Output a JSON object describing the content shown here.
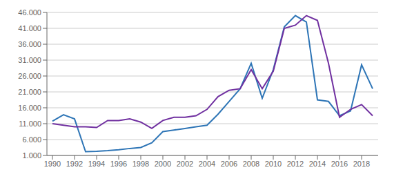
{
  "chart_data": {
    "type": "line",
    "x": [
      1990,
      1991,
      1992,
      1993,
      1994,
      1995,
      1996,
      1997,
      1998,
      1999,
      2000,
      2001,
      2002,
      2003,
      2004,
      2005,
      2006,
      2007,
      2008,
      2009,
      2010,
      2011,
      2012,
      2013,
      2014,
      2015,
      2016,
      2017,
      2018,
      2019
    ],
    "series": [
      {
        "color": "#2e75b6",
        "values": [
          11800,
          13800,
          12500,
          2200,
          2300,
          2500,
          2800,
          3200,
          3500,
          5000,
          8500,
          9000,
          9500,
          10000,
          10500,
          14000,
          18000,
          22000,
          30000,
          19000,
          28000,
          41500,
          45000,
          43000,
          18500,
          18000,
          13500,
          15000,
          29500,
          22000
        ]
      },
      {
        "color": "#7030a0",
        "values": [
          11000,
          10500,
          10000,
          10000,
          9800,
          12000,
          12000,
          12500,
          11500,
          9500,
          12000,
          13000,
          13000,
          13500,
          15500,
          19500,
          21500,
          22000,
          28000,
          22000,
          27500,
          41000,
          42000,
          45000,
          43500,
          30000,
          13000,
          15500,
          17000,
          13500
        ]
      }
    ],
    "xlim": [
      1989.5,
      2019.5
    ],
    "xticks": [
      1990,
      1992,
      1994,
      1996,
      1998,
      2000,
      2002,
      2004,
      2006,
      2008,
      2010,
      2012,
      2014,
      2016,
      2018
    ],
    "ylim": [
      1000,
      46000
    ],
    "yticks": [
      {
        "value": 1000,
        "label": "1.000"
      },
      {
        "value": 6000,
        "label": "6.000"
      },
      {
        "value": 11000,
        "label": "11.000"
      },
      {
        "value": 16000,
        "label": "16.000"
      },
      {
        "value": 21000,
        "label": "21.000"
      },
      {
        "value": 26000,
        "label": "26.000"
      },
      {
        "value": 31000,
        "label": "31.000"
      },
      {
        "value": 36000,
        "label": "36.000"
      },
      {
        "value": 41000,
        "label": "41.000"
      },
      {
        "value": 46000,
        "label": "46.000"
      }
    ],
    "grid": true
  }
}
